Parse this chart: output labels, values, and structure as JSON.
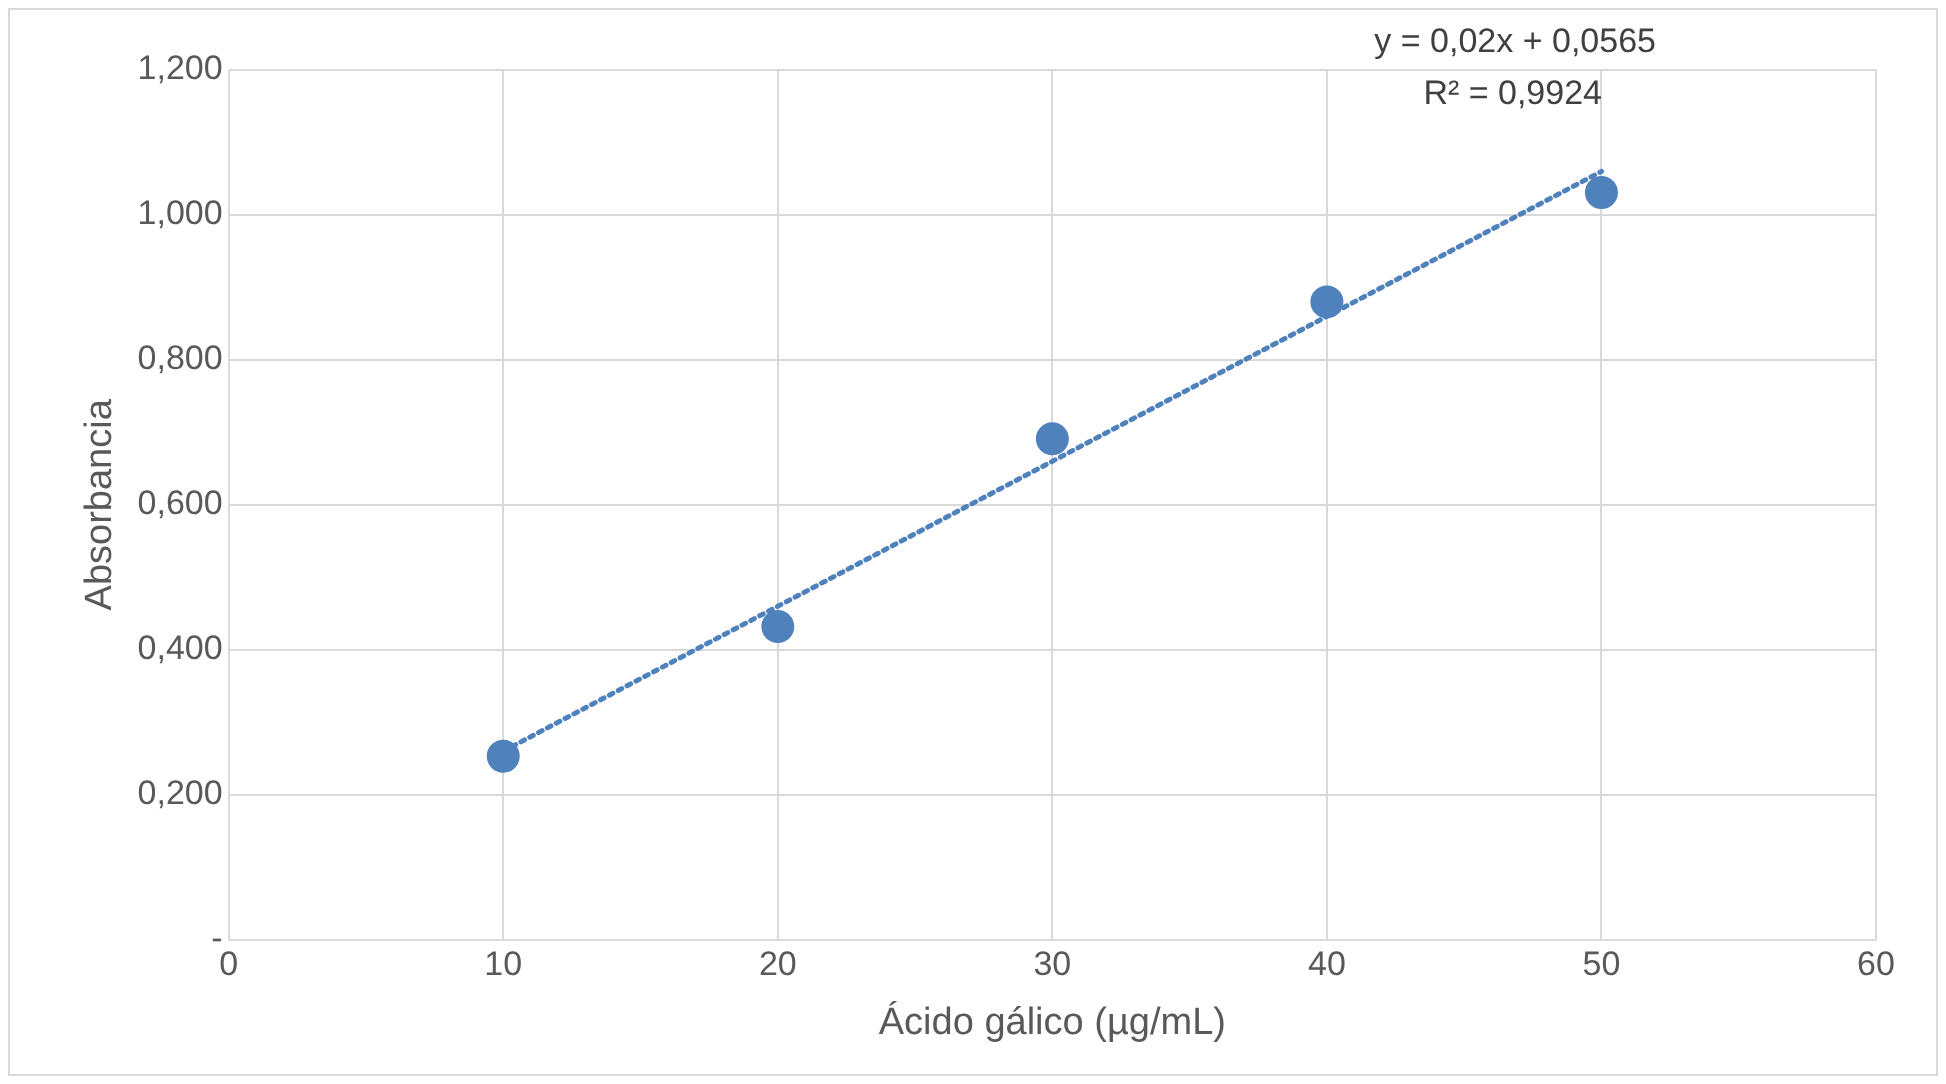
{
  "chart_data": {
    "type": "scatter",
    "xlabel": "Ácido gálico (µg/mL)",
    "ylabel": "Absorbancia",
    "x": [
      10,
      20,
      30,
      40,
      50
    ],
    "series": [
      {
        "color": "#4f81bd",
        "values": [
          0.253,
          0.432,
          0.691,
          0.88,
          1.031
        ],
        "marker": "circle"
      },
      {
        "type": "line",
        "color": "#4f81bd",
        "x": [
          10,
          50
        ],
        "values": [
          0.26,
          1.06
        ],
        "marker": "none",
        "line_style": "dotted"
      }
    ],
    "xlim": [
      0,
      60
    ],
    "xticks": [
      0,
      10,
      20,
      30,
      40,
      50,
      60
    ],
    "ylim": [
      0,
      1.2
    ],
    "yticks": [
      {
        "value": 0,
        "label": "-"
      },
      {
        "value": 0.2,
        "label": "0,200"
      },
      {
        "value": 0.4,
        "label": "0,400"
      },
      {
        "value": 0.6,
        "label": "0,600"
      },
      {
        "value": 0.8,
        "label": "0,800"
      },
      {
        "value": 1.0,
        "label": "1,000"
      },
      {
        "value": 1.2,
        "label": "1,200"
      }
    ],
    "grid": true,
    "legend": false,
    "annotations": [
      "y = 0,02x + 0,0565",
      "R² = 0,9924"
    ]
  }
}
